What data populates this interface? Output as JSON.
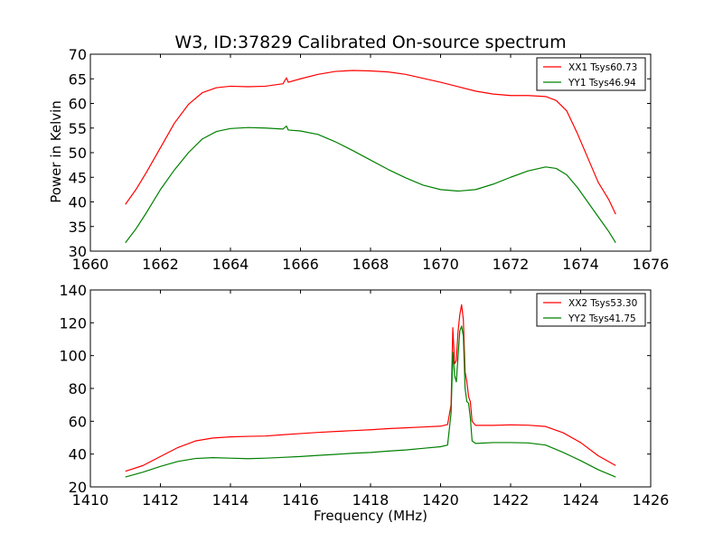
{
  "chart_data": [
    {
      "type": "line",
      "title": "W3, ID:37829 Calibrated On-source spectrum",
      "xlabel": "",
      "ylabel": "Power in Kelvin",
      "xlim": [
        1660,
        1676
      ],
      "ylim": [
        30,
        70
      ],
      "xticks": [
        1660,
        1662,
        1664,
        1666,
        1668,
        1670,
        1672,
        1674,
        1676
      ],
      "yticks": [
        30,
        35,
        40,
        45,
        50,
        55,
        60,
        65,
        70
      ],
      "legend_position": "top-right",
      "series": [
        {
          "name": "XX1 Tsys60.73",
          "color": "#ff0000",
          "points": [
            [
              1661.0,
              39.5
            ],
            [
              1661.3,
              42.5
            ],
            [
              1661.6,
              46.0
            ],
            [
              1662.0,
              51.0
            ],
            [
              1662.4,
              56.0
            ],
            [
              1662.8,
              59.8
            ],
            [
              1663.2,
              62.2
            ],
            [
              1663.6,
              63.2
            ],
            [
              1664.0,
              63.5
            ],
            [
              1664.5,
              63.4
            ],
            [
              1665.0,
              63.5
            ],
            [
              1665.5,
              64.0
            ],
            [
              1665.6,
              65.2
            ],
            [
              1665.65,
              64.3
            ],
            [
              1666.0,
              65.0
            ],
            [
              1666.5,
              65.9
            ],
            [
              1667.0,
              66.5
            ],
            [
              1667.5,
              66.7
            ],
            [
              1668.0,
              66.6
            ],
            [
              1668.5,
              66.4
            ],
            [
              1669.0,
              65.9
            ],
            [
              1669.5,
              65.1
            ],
            [
              1670.0,
              64.3
            ],
            [
              1670.5,
              63.4
            ],
            [
              1671.0,
              62.5
            ],
            [
              1671.5,
              61.9
            ],
            [
              1672.0,
              61.6
            ],
            [
              1672.5,
              61.6
            ],
            [
              1673.0,
              61.4
            ],
            [
              1673.3,
              60.6
            ],
            [
              1673.6,
              58.5
            ],
            [
              1673.9,
              54.0
            ],
            [
              1674.2,
              49.0
            ],
            [
              1674.5,
              44.0
            ],
            [
              1674.8,
              40.5
            ],
            [
              1675.0,
              37.5
            ]
          ]
        },
        {
          "name": "YY1 Tsys46.94",
          "color": "#008000",
          "points": [
            [
              1661.0,
              31.7
            ],
            [
              1661.3,
              34.5
            ],
            [
              1661.6,
              37.8
            ],
            [
              1662.0,
              42.5
            ],
            [
              1662.4,
              46.5
            ],
            [
              1662.8,
              50.0
            ],
            [
              1663.2,
              52.8
            ],
            [
              1663.6,
              54.3
            ],
            [
              1664.0,
              54.9
            ],
            [
              1664.5,
              55.1
            ],
            [
              1665.0,
              55.0
            ],
            [
              1665.5,
              54.8
            ],
            [
              1665.6,
              55.4
            ],
            [
              1665.65,
              54.6
            ],
            [
              1666.0,
              54.4
            ],
            [
              1666.5,
              53.7
            ],
            [
              1667.0,
              52.2
            ],
            [
              1667.5,
              50.4
            ],
            [
              1668.0,
              48.5
            ],
            [
              1668.5,
              46.6
            ],
            [
              1669.0,
              44.9
            ],
            [
              1669.5,
              43.4
            ],
            [
              1670.0,
              42.5
            ],
            [
              1670.5,
              42.2
            ],
            [
              1671.0,
              42.5
            ],
            [
              1671.5,
              43.6
            ],
            [
              1672.0,
              45.0
            ],
            [
              1672.5,
              46.3
            ],
            [
              1673.0,
              47.1
            ],
            [
              1673.3,
              46.8
            ],
            [
              1673.6,
              45.5
            ],
            [
              1673.9,
              43.0
            ],
            [
              1674.2,
              40.0
            ],
            [
              1674.5,
              37.0
            ],
            [
              1674.8,
              34.0
            ],
            [
              1675.0,
              31.7
            ]
          ]
        }
      ]
    },
    {
      "type": "line",
      "title": "",
      "xlabel": "Frequency (MHz)",
      "ylabel": "",
      "xlim": [
        1410,
        1426
      ],
      "ylim": [
        20,
        140
      ],
      "xticks": [
        1410,
        1412,
        1414,
        1416,
        1418,
        1420,
        1422,
        1424,
        1426
      ],
      "yticks": [
        20,
        40,
        60,
        80,
        100,
        120,
        140
      ],
      "legend_position": "top-right",
      "series": [
        {
          "name": "XX2 Tsys53.30",
          "color": "#ff0000",
          "points": [
            [
              1411.0,
              29.5
            ],
            [
              1411.5,
              33.0
            ],
            [
              1412.0,
              38.5
            ],
            [
              1412.5,
              44.0
            ],
            [
              1413.0,
              48.0
            ],
            [
              1413.5,
              49.8
            ],
            [
              1414.0,
              50.5
            ],
            [
              1414.5,
              50.8
            ],
            [
              1415.0,
              51.0
            ],
            [
              1415.5,
              51.8
            ],
            [
              1416.0,
              52.5
            ],
            [
              1416.5,
              53.2
            ],
            [
              1417.0,
              53.8
            ],
            [
              1417.5,
              54.3
            ],
            [
              1418.0,
              54.8
            ],
            [
              1418.5,
              55.5
            ],
            [
              1419.0,
              56.0
            ],
            [
              1419.5,
              56.5
            ],
            [
              1420.0,
              57.0
            ],
            [
              1420.2,
              58.0
            ],
            [
              1420.3,
              70.0
            ],
            [
              1420.35,
              117.0
            ],
            [
              1420.4,
              95.0
            ],
            [
              1420.45,
              97.0
            ],
            [
              1420.5,
              115.0
            ],
            [
              1420.55,
              125.0
            ],
            [
              1420.6,
              131.0
            ],
            [
              1420.65,
              122.0
            ],
            [
              1420.7,
              90.0
            ],
            [
              1420.75,
              84.0
            ],
            [
              1420.8,
              75.0
            ],
            [
              1420.85,
              72.0
            ],
            [
              1420.9,
              60.0
            ],
            [
              1421.0,
              57.5
            ],
            [
              1421.5,
              57.5
            ],
            [
              1422.0,
              57.8
            ],
            [
              1422.5,
              57.6
            ],
            [
              1423.0,
              56.8
            ],
            [
              1423.5,
              53.0
            ],
            [
              1424.0,
              47.0
            ],
            [
              1424.5,
              39.0
            ],
            [
              1425.0,
              33.0
            ]
          ]
        },
        {
          "name": "YY2 Tsys41.75",
          "color": "#008000",
          "points": [
            [
              1411.0,
              26.0
            ],
            [
              1411.5,
              29.0
            ],
            [
              1412.0,
              32.5
            ],
            [
              1412.5,
              35.5
            ],
            [
              1413.0,
              37.3
            ],
            [
              1413.5,
              37.8
            ],
            [
              1414.0,
              37.5
            ],
            [
              1414.5,
              37.2
            ],
            [
              1415.0,
              37.5
            ],
            [
              1415.5,
              38.0
            ],
            [
              1416.0,
              38.5
            ],
            [
              1416.5,
              39.2
            ],
            [
              1417.0,
              39.8
            ],
            [
              1417.5,
              40.5
            ],
            [
              1418.0,
              41.0
            ],
            [
              1418.5,
              41.8
            ],
            [
              1419.0,
              42.5
            ],
            [
              1419.5,
              43.5
            ],
            [
              1420.0,
              44.5
            ],
            [
              1420.2,
              45.5
            ],
            [
              1420.3,
              65.0
            ],
            [
              1420.35,
              102.0
            ],
            [
              1420.4,
              88.0
            ],
            [
              1420.45,
              84.0
            ],
            [
              1420.5,
              100.0
            ],
            [
              1420.55,
              115.0
            ],
            [
              1420.6,
              118.0
            ],
            [
              1420.65,
              112.0
            ],
            [
              1420.7,
              80.0
            ],
            [
              1420.75,
              72.0
            ],
            [
              1420.8,
              71.0
            ],
            [
              1420.85,
              62.0
            ],
            [
              1420.9,
              48.0
            ],
            [
              1421.0,
              46.5
            ],
            [
              1421.5,
              47.0
            ],
            [
              1422.0,
              47.0
            ],
            [
              1422.5,
              46.8
            ],
            [
              1423.0,
              45.5
            ],
            [
              1423.5,
              41.0
            ],
            [
              1424.0,
              36.0
            ],
            [
              1424.5,
              30.5
            ],
            [
              1425.0,
              26.0
            ]
          ]
        }
      ]
    }
  ]
}
